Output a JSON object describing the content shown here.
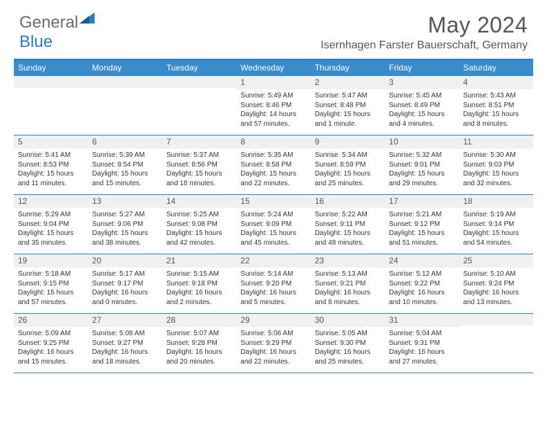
{
  "logo": {
    "part1": "General",
    "part2": "Blue"
  },
  "title": "May 2024",
  "location": "Isernhagen Farster Bauerschaft, Germany",
  "colors": {
    "header_bar": "#3a8bc9",
    "border": "#2e7bbf",
    "daynum_bg": "#eef0f2",
    "text": "#333333",
    "logo_gray": "#6b6b6b",
    "logo_blue": "#2b7bbf"
  },
  "weekdays": [
    "Sunday",
    "Monday",
    "Tuesday",
    "Wednesday",
    "Thursday",
    "Friday",
    "Saturday"
  ],
  "weeks": [
    [
      {
        "blank": true
      },
      {
        "blank": true
      },
      {
        "blank": true
      },
      {
        "num": "1",
        "sunrise": "Sunrise: 5:49 AM",
        "sunset": "Sunset: 8:46 PM",
        "day1": "Daylight: 14 hours",
        "day2": "and 57 minutes."
      },
      {
        "num": "2",
        "sunrise": "Sunrise: 5:47 AM",
        "sunset": "Sunset: 8:48 PM",
        "day1": "Daylight: 15 hours",
        "day2": "and 1 minute."
      },
      {
        "num": "3",
        "sunrise": "Sunrise: 5:45 AM",
        "sunset": "Sunset: 8:49 PM",
        "day1": "Daylight: 15 hours",
        "day2": "and 4 minutes."
      },
      {
        "num": "4",
        "sunrise": "Sunrise: 5:43 AM",
        "sunset": "Sunset: 8:51 PM",
        "day1": "Daylight: 15 hours",
        "day2": "and 8 minutes."
      }
    ],
    [
      {
        "num": "5",
        "sunrise": "Sunrise: 5:41 AM",
        "sunset": "Sunset: 8:53 PM",
        "day1": "Daylight: 15 hours",
        "day2": "and 11 minutes."
      },
      {
        "num": "6",
        "sunrise": "Sunrise: 5:39 AM",
        "sunset": "Sunset: 8:54 PM",
        "day1": "Daylight: 15 hours",
        "day2": "and 15 minutes."
      },
      {
        "num": "7",
        "sunrise": "Sunrise: 5:37 AM",
        "sunset": "Sunset: 8:56 PM",
        "day1": "Daylight: 15 hours",
        "day2": "and 18 minutes."
      },
      {
        "num": "8",
        "sunrise": "Sunrise: 5:35 AM",
        "sunset": "Sunset: 8:58 PM",
        "day1": "Daylight: 15 hours",
        "day2": "and 22 minutes."
      },
      {
        "num": "9",
        "sunrise": "Sunrise: 5:34 AM",
        "sunset": "Sunset: 8:59 PM",
        "day1": "Daylight: 15 hours",
        "day2": "and 25 minutes."
      },
      {
        "num": "10",
        "sunrise": "Sunrise: 5:32 AM",
        "sunset": "Sunset: 9:01 PM",
        "day1": "Daylight: 15 hours",
        "day2": "and 29 minutes."
      },
      {
        "num": "11",
        "sunrise": "Sunrise: 5:30 AM",
        "sunset": "Sunset: 9:03 PM",
        "day1": "Daylight: 15 hours",
        "day2": "and 32 minutes."
      }
    ],
    [
      {
        "num": "12",
        "sunrise": "Sunrise: 5:29 AM",
        "sunset": "Sunset: 9:04 PM",
        "day1": "Daylight: 15 hours",
        "day2": "and 35 minutes."
      },
      {
        "num": "13",
        "sunrise": "Sunrise: 5:27 AM",
        "sunset": "Sunset: 9:06 PM",
        "day1": "Daylight: 15 hours",
        "day2": "and 38 minutes."
      },
      {
        "num": "14",
        "sunrise": "Sunrise: 5:25 AM",
        "sunset": "Sunset: 9:08 PM",
        "day1": "Daylight: 15 hours",
        "day2": "and 42 minutes."
      },
      {
        "num": "15",
        "sunrise": "Sunrise: 5:24 AM",
        "sunset": "Sunset: 9:09 PM",
        "day1": "Daylight: 15 hours",
        "day2": "and 45 minutes."
      },
      {
        "num": "16",
        "sunrise": "Sunrise: 5:22 AM",
        "sunset": "Sunset: 9:11 PM",
        "day1": "Daylight: 15 hours",
        "day2": "and 48 minutes."
      },
      {
        "num": "17",
        "sunrise": "Sunrise: 5:21 AM",
        "sunset": "Sunset: 9:12 PM",
        "day1": "Daylight: 15 hours",
        "day2": "and 51 minutes."
      },
      {
        "num": "18",
        "sunrise": "Sunrise: 5:19 AM",
        "sunset": "Sunset: 9:14 PM",
        "day1": "Daylight: 15 hours",
        "day2": "and 54 minutes."
      }
    ],
    [
      {
        "num": "19",
        "sunrise": "Sunrise: 5:18 AM",
        "sunset": "Sunset: 9:15 PM",
        "day1": "Daylight: 15 hours",
        "day2": "and 57 minutes."
      },
      {
        "num": "20",
        "sunrise": "Sunrise: 5:17 AM",
        "sunset": "Sunset: 9:17 PM",
        "day1": "Daylight: 16 hours",
        "day2": "and 0 minutes."
      },
      {
        "num": "21",
        "sunrise": "Sunrise: 5:15 AM",
        "sunset": "Sunset: 9:18 PM",
        "day1": "Daylight: 16 hours",
        "day2": "and 2 minutes."
      },
      {
        "num": "22",
        "sunrise": "Sunrise: 5:14 AM",
        "sunset": "Sunset: 9:20 PM",
        "day1": "Daylight: 16 hours",
        "day2": "and 5 minutes."
      },
      {
        "num": "23",
        "sunrise": "Sunrise: 5:13 AM",
        "sunset": "Sunset: 9:21 PM",
        "day1": "Daylight: 16 hours",
        "day2": "and 8 minutes."
      },
      {
        "num": "24",
        "sunrise": "Sunrise: 5:12 AM",
        "sunset": "Sunset: 9:22 PM",
        "day1": "Daylight: 16 hours",
        "day2": "and 10 minutes."
      },
      {
        "num": "25",
        "sunrise": "Sunrise: 5:10 AM",
        "sunset": "Sunset: 9:24 PM",
        "day1": "Daylight: 16 hours",
        "day2": "and 13 minutes."
      }
    ],
    [
      {
        "num": "26",
        "sunrise": "Sunrise: 5:09 AM",
        "sunset": "Sunset: 9:25 PM",
        "day1": "Daylight: 16 hours",
        "day2": "and 15 minutes."
      },
      {
        "num": "27",
        "sunrise": "Sunrise: 5:08 AM",
        "sunset": "Sunset: 9:27 PM",
        "day1": "Daylight: 16 hours",
        "day2": "and 18 minutes."
      },
      {
        "num": "28",
        "sunrise": "Sunrise: 5:07 AM",
        "sunset": "Sunset: 9:28 PM",
        "day1": "Daylight: 16 hours",
        "day2": "and 20 minutes."
      },
      {
        "num": "29",
        "sunrise": "Sunrise: 5:06 AM",
        "sunset": "Sunset: 9:29 PM",
        "day1": "Daylight: 16 hours",
        "day2": "and 22 minutes."
      },
      {
        "num": "30",
        "sunrise": "Sunrise: 5:05 AM",
        "sunset": "Sunset: 9:30 PM",
        "day1": "Daylight: 16 hours",
        "day2": "and 25 minutes."
      },
      {
        "num": "31",
        "sunrise": "Sunrise: 5:04 AM",
        "sunset": "Sunset: 9:31 PM",
        "day1": "Daylight: 16 hours",
        "day2": "and 27 minutes."
      },
      {
        "blank": true
      }
    ]
  ]
}
